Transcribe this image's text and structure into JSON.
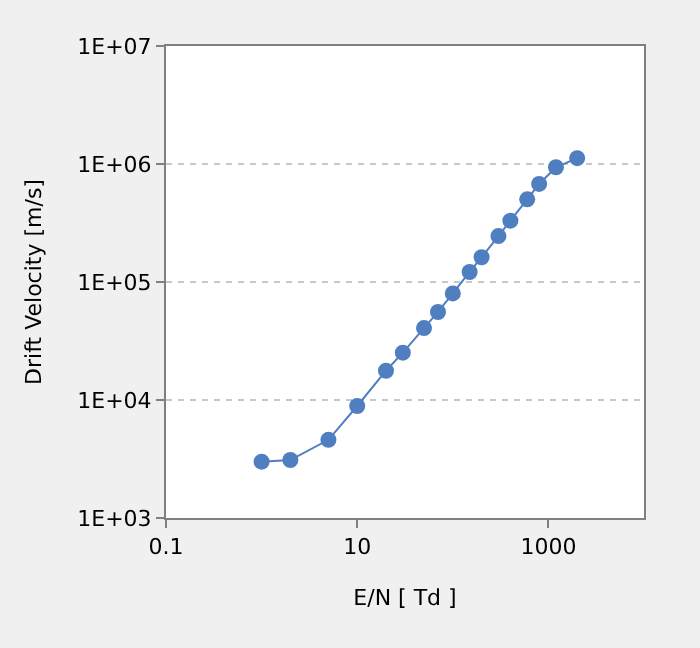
{
  "chart_data": {
    "type": "line",
    "xlabel": "E/N [ Td ]",
    "ylabel": "Drift Velocity [m/s]",
    "x": [
      1,
      2,
      5,
      10,
      20,
      30,
      50,
      70,
      100,
      150,
      200,
      300,
      400,
      600,
      800,
      1200,
      2000
    ],
    "series": [
      {
        "color": "#4f7fc0",
        "values": [
          3000,
          3100,
          4600,
          8900,
          17700,
          25200,
          40700,
          55700,
          80100,
          121600,
          162000,
          245000,
          331000,
          502000,
          678000,
          938000,
          1120000
        ]
      }
    ],
    "log": "xy",
    "xlim": [
      0.1,
      10000
    ],
    "xticks": [
      0.1,
      10,
      1000
    ],
    "ylim": [
      1000,
      10000000
    ],
    "yticks": [
      {
        "value": 1000,
        "label": "1E+03"
      },
      {
        "value": 10000,
        "label": "1E+04"
      },
      {
        "value": 100000,
        "label": "1E+05"
      },
      {
        "value": 1000000,
        "label": "1E+06"
      },
      {
        "value": 10000000,
        "label": "1E+07"
      }
    ],
    "grid": "y",
    "marker": "circle",
    "line_style": "solid"
  }
}
